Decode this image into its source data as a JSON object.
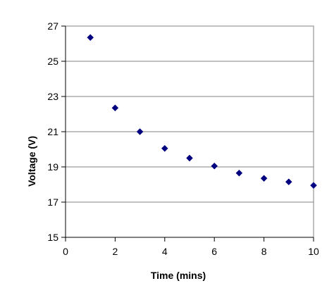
{
  "chart_data": {
    "type": "scatter",
    "title": "",
    "xlabel": "Time (mins)",
    "ylabel": "Voltage (V)",
    "xlim": [
      0,
      10
    ],
    "ylim": [
      15,
      27
    ],
    "xticks": [
      0,
      2,
      4,
      6,
      8,
      10
    ],
    "yticks": [
      15,
      17,
      19,
      21,
      23,
      25,
      27
    ],
    "grid": "horizontal",
    "legend": "none",
    "marker": "diamond",
    "marker_color": "#000080",
    "points": [
      {
        "x": 1,
        "y": 26.35
      },
      {
        "x": 2,
        "y": 22.35
      },
      {
        "x": 3,
        "y": 21.0
      },
      {
        "x": 4,
        "y": 20.05
      },
      {
        "x": 5,
        "y": 19.5
      },
      {
        "x": 6,
        "y": 19.05
      },
      {
        "x": 7,
        "y": 18.65
      },
      {
        "x": 8,
        "y": 18.35
      },
      {
        "x": 9,
        "y": 18.15
      },
      {
        "x": 10,
        "y": 17.95
      }
    ]
  }
}
